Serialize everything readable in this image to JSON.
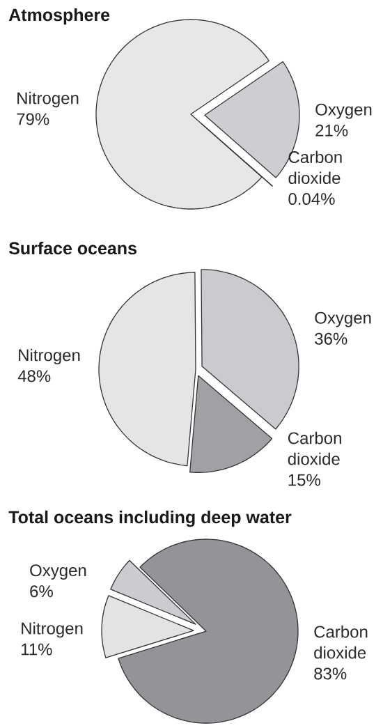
{
  "chart_data": [
    {
      "type": "pie",
      "title": "Atmosphere",
      "categories": [
        "Nitrogen",
        "Oxygen",
        "Carbon dioxide"
      ],
      "values": [
        79,
        21,
        0.04
      ],
      "value_labels": [
        "79%",
        "21%",
        "0.04%"
      ],
      "colors": [
        "#e6e7e9",
        "#cdced1",
        "#c8c9cc"
      ]
    },
    {
      "type": "pie",
      "title": "Surface oceans",
      "categories": [
        "Nitrogen",
        "Oxygen",
        "Carbon dioxide"
      ],
      "values": [
        48,
        36,
        15
      ],
      "value_labels": [
        "48%",
        "36%",
        "15%"
      ],
      "colors": [
        "#e4e5e7",
        "#cacbce",
        "#a0a1a4"
      ]
    },
    {
      "type": "pie",
      "title": "Total oceans including deep water",
      "categories": [
        "Oxygen",
        "Nitrogen",
        "Carbon dioxide"
      ],
      "values": [
        6,
        11,
        83
      ],
      "value_labels": [
        "6%",
        "11%",
        "83%"
      ],
      "colors": [
        "#cbccd0",
        "#e2e3e5",
        "#939497"
      ]
    }
  ]
}
